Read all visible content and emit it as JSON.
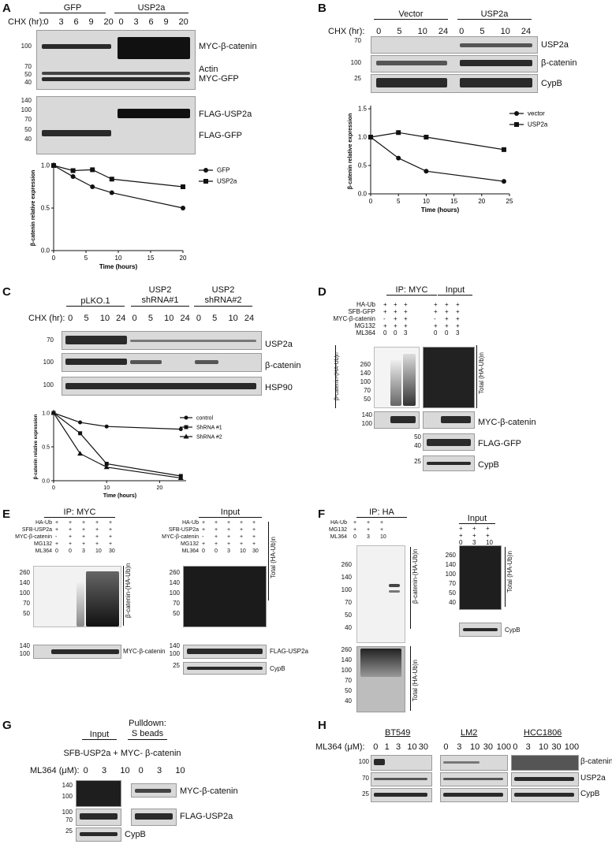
{
  "panels": {
    "A": "A",
    "B": "B",
    "C": "C",
    "D": "D",
    "E": "E",
    "F": "F",
    "G": "G",
    "H": "H"
  },
  "A": {
    "groups": [
      "GFP",
      "USP2a"
    ],
    "chx": "CHX (hr):",
    "times": [
      "0",
      "3",
      "6",
      "9",
      "20",
      "0",
      "3",
      "6",
      "9",
      "20"
    ],
    "blot1_labels": [
      "MYC-β-catenin",
      "Actin",
      "MYC-GFP"
    ],
    "blot1_mw": [
      "100",
      "70",
      "50",
      "40"
    ],
    "blot2_labels": [
      "FLAG-USP2a",
      "FLAG-GFP"
    ],
    "blot2_mw": [
      "140",
      "100",
      "70",
      "50",
      "40"
    ]
  },
  "B": {
    "groups": [
      "Vector",
      "USP2a"
    ],
    "chx": "CHX (hr):",
    "times": [
      "0",
      "5",
      "10",
      "24",
      "0",
      "5",
      "10",
      "24"
    ],
    "labels": [
      "USP2a",
      "β-catenin",
      "CypB"
    ],
    "mw": [
      "70",
      "100",
      "25"
    ]
  },
  "C": {
    "groups": [
      "pLKO.1",
      "USP2\nshRNA#1",
      "USP2\nshRNA#2"
    ],
    "chx": "CHX (hr):",
    "times": [
      "0",
      "5",
      "10",
      "24",
      "0",
      "5",
      "10",
      "24",
      "0",
      "5",
      "10",
      "24"
    ],
    "labels": [
      "USP2a",
      "β-catenin",
      "HSP90"
    ],
    "mw": [
      "70",
      "100",
      "100"
    ]
  },
  "D": {
    "headers": [
      "IP: MYC",
      "Input"
    ],
    "rows": [
      "HA-Ub",
      "SFB-GFP",
      "MYC-β-catenin",
      "MG132",
      "ML364"
    ],
    "ip_marks": [
      [
        "+",
        "+",
        "+"
      ],
      [
        "+",
        "+",
        "+"
      ],
      [
        "-",
        "+",
        "+"
      ],
      [
        "+",
        "+",
        "+"
      ],
      [
        "0",
        "0",
        "3"
      ]
    ],
    "in_marks": [
      [
        "+",
        "+",
        "+"
      ],
      [
        "+",
        "+",
        "+"
      ],
      [
        "-",
        "+",
        "+"
      ],
      [
        "+",
        "+",
        "+"
      ],
      [
        "0",
        "0",
        "3"
      ]
    ],
    "mw_top": [
      "260",
      "140",
      "100",
      "70",
      "50"
    ],
    "side_left": "β-catenin-(HA-Ub)n",
    "side_right": "Total (HA-Ub)n",
    "mw_mid": [
      "140",
      "100"
    ],
    "label_myc": "MYC-β-catenin",
    "mw_flag": [
      "50",
      "40"
    ],
    "label_flag": "FLAG-GFP",
    "mw_cyp": [
      "25"
    ],
    "label_cyp": "CypB"
  },
  "E": {
    "headers": [
      "IP: MYC",
      "Input"
    ],
    "rows": [
      "HA-Ub",
      "SFB-USP2a",
      "MYC-β-catenin",
      "MG132",
      "ML364"
    ],
    "marks": [
      [
        "+",
        "+",
        "+",
        "+",
        "+"
      ],
      [
        "+",
        "+",
        "+",
        "+",
        "+"
      ],
      [
        "-",
        "+",
        "+",
        "+",
        "+"
      ],
      [
        "+",
        "+",
        "+",
        "+",
        "+"
      ],
      [
        "0",
        "0",
        "3",
        "10",
        "30"
      ]
    ],
    "mw_top": [
      "260",
      "140",
      "100",
      "70",
      "50"
    ],
    "side_ip": "β-catenin-(HA-Ub)n",
    "side_in": "Total (HA-Ub)n",
    "mw_myc": [
      "140",
      "100"
    ],
    "label_myc": "MYC-β-catenin",
    "mw_flag": [
      "140",
      "100"
    ],
    "label_flag": "FLAG-USP2a",
    "mw_cyp": [
      "25"
    ],
    "label_cyp": "CypB"
  },
  "F": {
    "headers": [
      "IP: HA",
      "Input"
    ],
    "rows": [
      "HA-Ub",
      "MG132",
      "ML364"
    ],
    "marks": [
      [
        "+",
        "+",
        "+"
      ],
      [
        "+",
        "+",
        "+"
      ],
      [
        "0",
        "3",
        "10"
      ]
    ],
    "mw_top": [
      "260",
      "140",
      "100",
      "70",
      "50",
      "40"
    ],
    "side_ip": "β-catenin-(HA-Ub)n",
    "side_in": "Total (HA-Ub)n",
    "mw_bottom": [
      "260",
      "140",
      "100",
      "70",
      "50",
      "40"
    ],
    "side_bottom": "Total (HA-Ub)n",
    "label_cyp": "CypB"
  },
  "G": {
    "headers": [
      "Input",
      "Pulldown:\nS beads"
    ],
    "construct": "SFB-USP2a + MYC- β-catenin",
    "ml364": "ML364 (μM):",
    "doses": [
      "0",
      "3",
      "10",
      "0",
      "3",
      "10"
    ],
    "labels": [
      "MYC-β-catenin",
      "FLAG-USP2a",
      "CypB"
    ],
    "mw1": [
      "140",
      "100"
    ],
    "mw2": [
      "100",
      "70"
    ],
    "mw3": [
      "25"
    ]
  },
  "H": {
    "lines": [
      "BT549",
      "LM2",
      "HCC1806"
    ],
    "ml364": "ML364 (μM):",
    "doses_bt": [
      "0",
      "1",
      "3",
      "10",
      "30"
    ],
    "doses_lm": [
      "0",
      "3",
      "10",
      "30",
      "100"
    ],
    "doses_hcc": [
      "0",
      "3",
      "10",
      "30",
      "100"
    ],
    "labels": [
      "β-catenin",
      "USP2a",
      "CypB"
    ],
    "mw": [
      "100",
      "70",
      "25"
    ]
  },
  "chart_data": [
    {
      "type": "line",
      "panel": "A",
      "xlabel": "Time (hours)",
      "ylabel": "β-catenin relative expression",
      "xlim": [
        0,
        20
      ],
      "ylim": [
        0.0,
        1.0
      ],
      "xticks": [
        0,
        5,
        10,
        15,
        20
      ],
      "yticks": [
        0.0,
        0.5,
        1.0
      ],
      "legend_position": "right",
      "series": [
        {
          "name": "GFP",
          "marker": "circle",
          "x": [
            0,
            3,
            6,
            9,
            20
          ],
          "y": [
            1.0,
            0.87,
            0.75,
            0.68,
            0.5
          ]
        },
        {
          "name": "USP2a",
          "marker": "square",
          "x": [
            0,
            3,
            6,
            9,
            20
          ],
          "y": [
            1.0,
            0.94,
            0.95,
            0.84,
            0.75
          ]
        }
      ]
    },
    {
      "type": "line",
      "panel": "B",
      "xlabel": "Time (hours)",
      "ylabel": "β-catenin relative expression",
      "xlim": [
        0,
        25
      ],
      "ylim": [
        0.0,
        1.5
      ],
      "xticks": [
        0,
        5,
        10,
        15,
        20,
        25
      ],
      "yticks": [
        0.0,
        0.5,
        1.0,
        1.5
      ],
      "legend_position": "top-right",
      "series": [
        {
          "name": "vector",
          "marker": "circle",
          "x": [
            0,
            5,
            10,
            24
          ],
          "y": [
            1.0,
            0.63,
            0.4,
            0.22
          ]
        },
        {
          "name": "USP2a",
          "marker": "square",
          "x": [
            0,
            5,
            10,
            24
          ],
          "y": [
            1.0,
            1.08,
            1.0,
            0.78
          ]
        }
      ]
    },
    {
      "type": "line",
      "panel": "C",
      "xlabel": "Time (hours)",
      "ylabel": "β-catenin relative expression",
      "xlim": [
        0,
        25
      ],
      "ylim": [
        0.0,
        1.0
      ],
      "xticks": [
        0,
        10,
        20
      ],
      "yticks": [
        0.0,
        0.5,
        1.0
      ],
      "legend_position": "right",
      "series": [
        {
          "name": "control",
          "marker": "circle",
          "x": [
            0,
            5,
            10,
            24
          ],
          "y": [
            1.0,
            0.86,
            0.8,
            0.76
          ]
        },
        {
          "name": "ShRNA #1",
          "marker": "square",
          "x": [
            0,
            5,
            10,
            24
          ],
          "y": [
            1.0,
            0.7,
            0.25,
            0.07
          ]
        },
        {
          "name": "ShRNA #2",
          "marker": "triangle",
          "x": [
            0,
            5,
            10,
            24
          ],
          "y": [
            1.0,
            0.4,
            0.2,
            0.04
          ]
        }
      ]
    }
  ]
}
